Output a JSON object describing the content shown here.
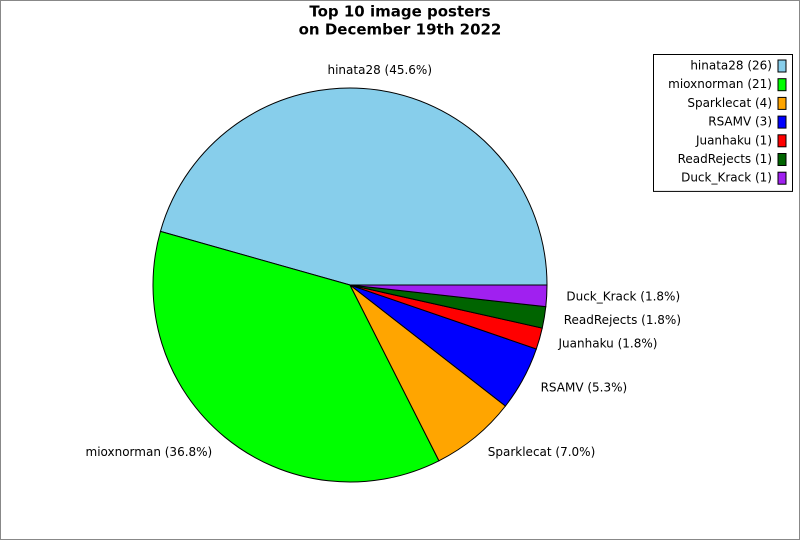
{
  "chart_data": {
    "type": "pie",
    "title": [
      "Top 10 image posters",
      "on December 19th 2022"
    ],
    "categories": [
      "hinata28",
      "mioxnorman",
      "Sparklecat",
      "RSAMV",
      "Juanhaku",
      "ReadRejects",
      "Duck_Krack"
    ],
    "values": [
      26,
      21,
      4,
      3,
      1,
      1,
      1
    ],
    "value_labels": [
      "hinata28 (45.6%)",
      "mioxnorman (36.8%)",
      "Sparklecat (7.0%)",
      "RSAMV (5.3%)",
      "Juanhaku (1.8%)",
      "ReadRejects (1.8%)",
      "Duck_Krack (1.8%)"
    ],
    "legend_labels": [
      "hinata28 (26)",
      "mioxnorman (21)",
      "Sparklecat (4)",
      "RSAMV (3)",
      "Juanhaku (1)",
      "ReadRejects (1)",
      "Duck_Krack (1)"
    ],
    "colors": [
      "#87ceeb",
      "#00ff00",
      "#ffa500",
      "#0000ff",
      "#ff0000",
      "#006400",
      "#a020f0"
    ],
    "legend": "upper right"
  }
}
